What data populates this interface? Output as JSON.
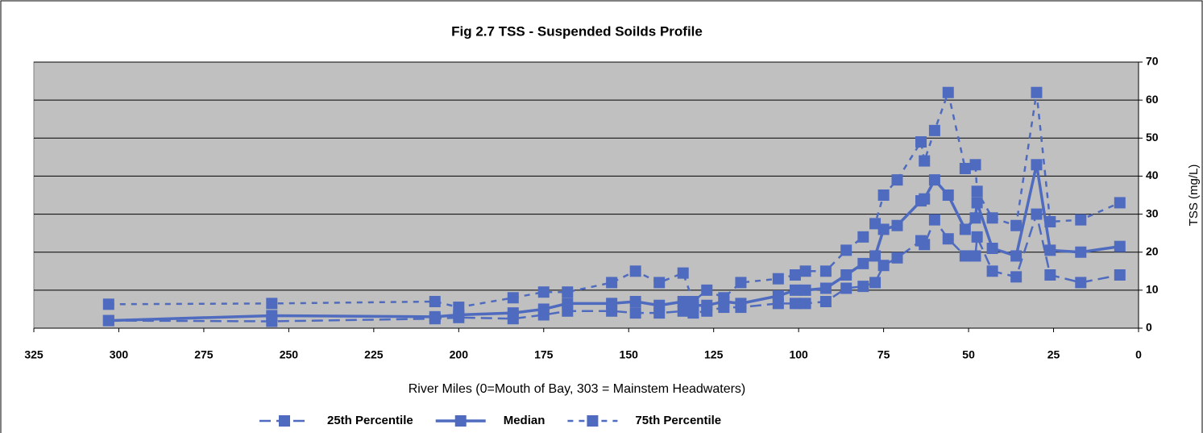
{
  "chart_data": {
    "type": "line",
    "title": "Fig 2.7 TSS - Suspended Soilds Profile",
    "x_label": "River Miles (0=Mouth of Bay, 303 = Mainstem Headwaters)",
    "y_label": "TSS (mg/L)",
    "x": [
      303,
      255,
      207,
      200,
      184,
      175,
      168,
      155,
      148,
      141,
      134,
      131,
      127,
      122,
      117,
      106,
      101,
      98,
      92,
      86,
      81,
      77.5,
      75,
      71,
      64,
      63,
      60,
      56,
      51,
      48,
      47.5,
      43,
      36,
      30,
      26,
      17,
      5.5
    ],
    "series": [
      {
        "name": "25th Percentile",
        "color": "#4f6bbf",
        "line_style": "long-dash",
        "values": [
          2,
          1.8,
          2.5,
          2.8,
          2.5,
          3.5,
          4.5,
          4.5,
          4,
          4,
          4.5,
          4,
          4.5,
          5.5,
          5.5,
          6.5,
          6.5,
          6.5,
          7,
          10.5,
          11,
          12,
          16.5,
          18.5,
          23,
          22,
          28.5,
          23.5,
          19,
          19,
          24,
          15,
          13.5,
          30,
          14,
          12,
          14
        ]
      },
      {
        "name": "Median",
        "color": "#4f6bbf",
        "line_style": "solid",
        "values": [
          2,
          3.3,
          3,
          3.5,
          4,
          5,
          6.5,
          6.5,
          7,
          6,
          7,
          6,
          6,
          7,
          6.5,
          8.5,
          10,
          10,
          10.5,
          14,
          17,
          19,
          26,
          27,
          33.5,
          34,
          39,
          35,
          26,
          29,
          33,
          21,
          19,
          43,
          20.5,
          20,
          21.5
        ]
      },
      {
        "name": "75th Percentile",
        "color": "#4f6bbf",
        "line_style": "short-dash",
        "values": [
          6.3,
          6.5,
          7,
          5.5,
          8,
          9.5,
          9.5,
          12,
          15,
          12,
          14.5,
          7,
          10,
          8,
          12,
          13,
          14,
          15,
          15,
          20.5,
          24,
          27.5,
          35,
          39,
          49,
          44,
          52,
          62,
          42,
          43,
          36,
          29,
          27,
          62,
          28,
          28.5,
          33
        ]
      }
    ],
    "xlim": [
      325,
      0
    ],
    "xticks": [
      325,
      300,
      275,
      250,
      225,
      200,
      175,
      150,
      125,
      100,
      75,
      50,
      25,
      0
    ],
    "ylim": [
      0,
      70
    ],
    "yticks": [
      0,
      10,
      20,
      30,
      40,
      50,
      60,
      70
    ],
    "grid": true,
    "plot_background": "#c0c0c0",
    "y_axis_side": "right",
    "legend": "bottom"
  }
}
